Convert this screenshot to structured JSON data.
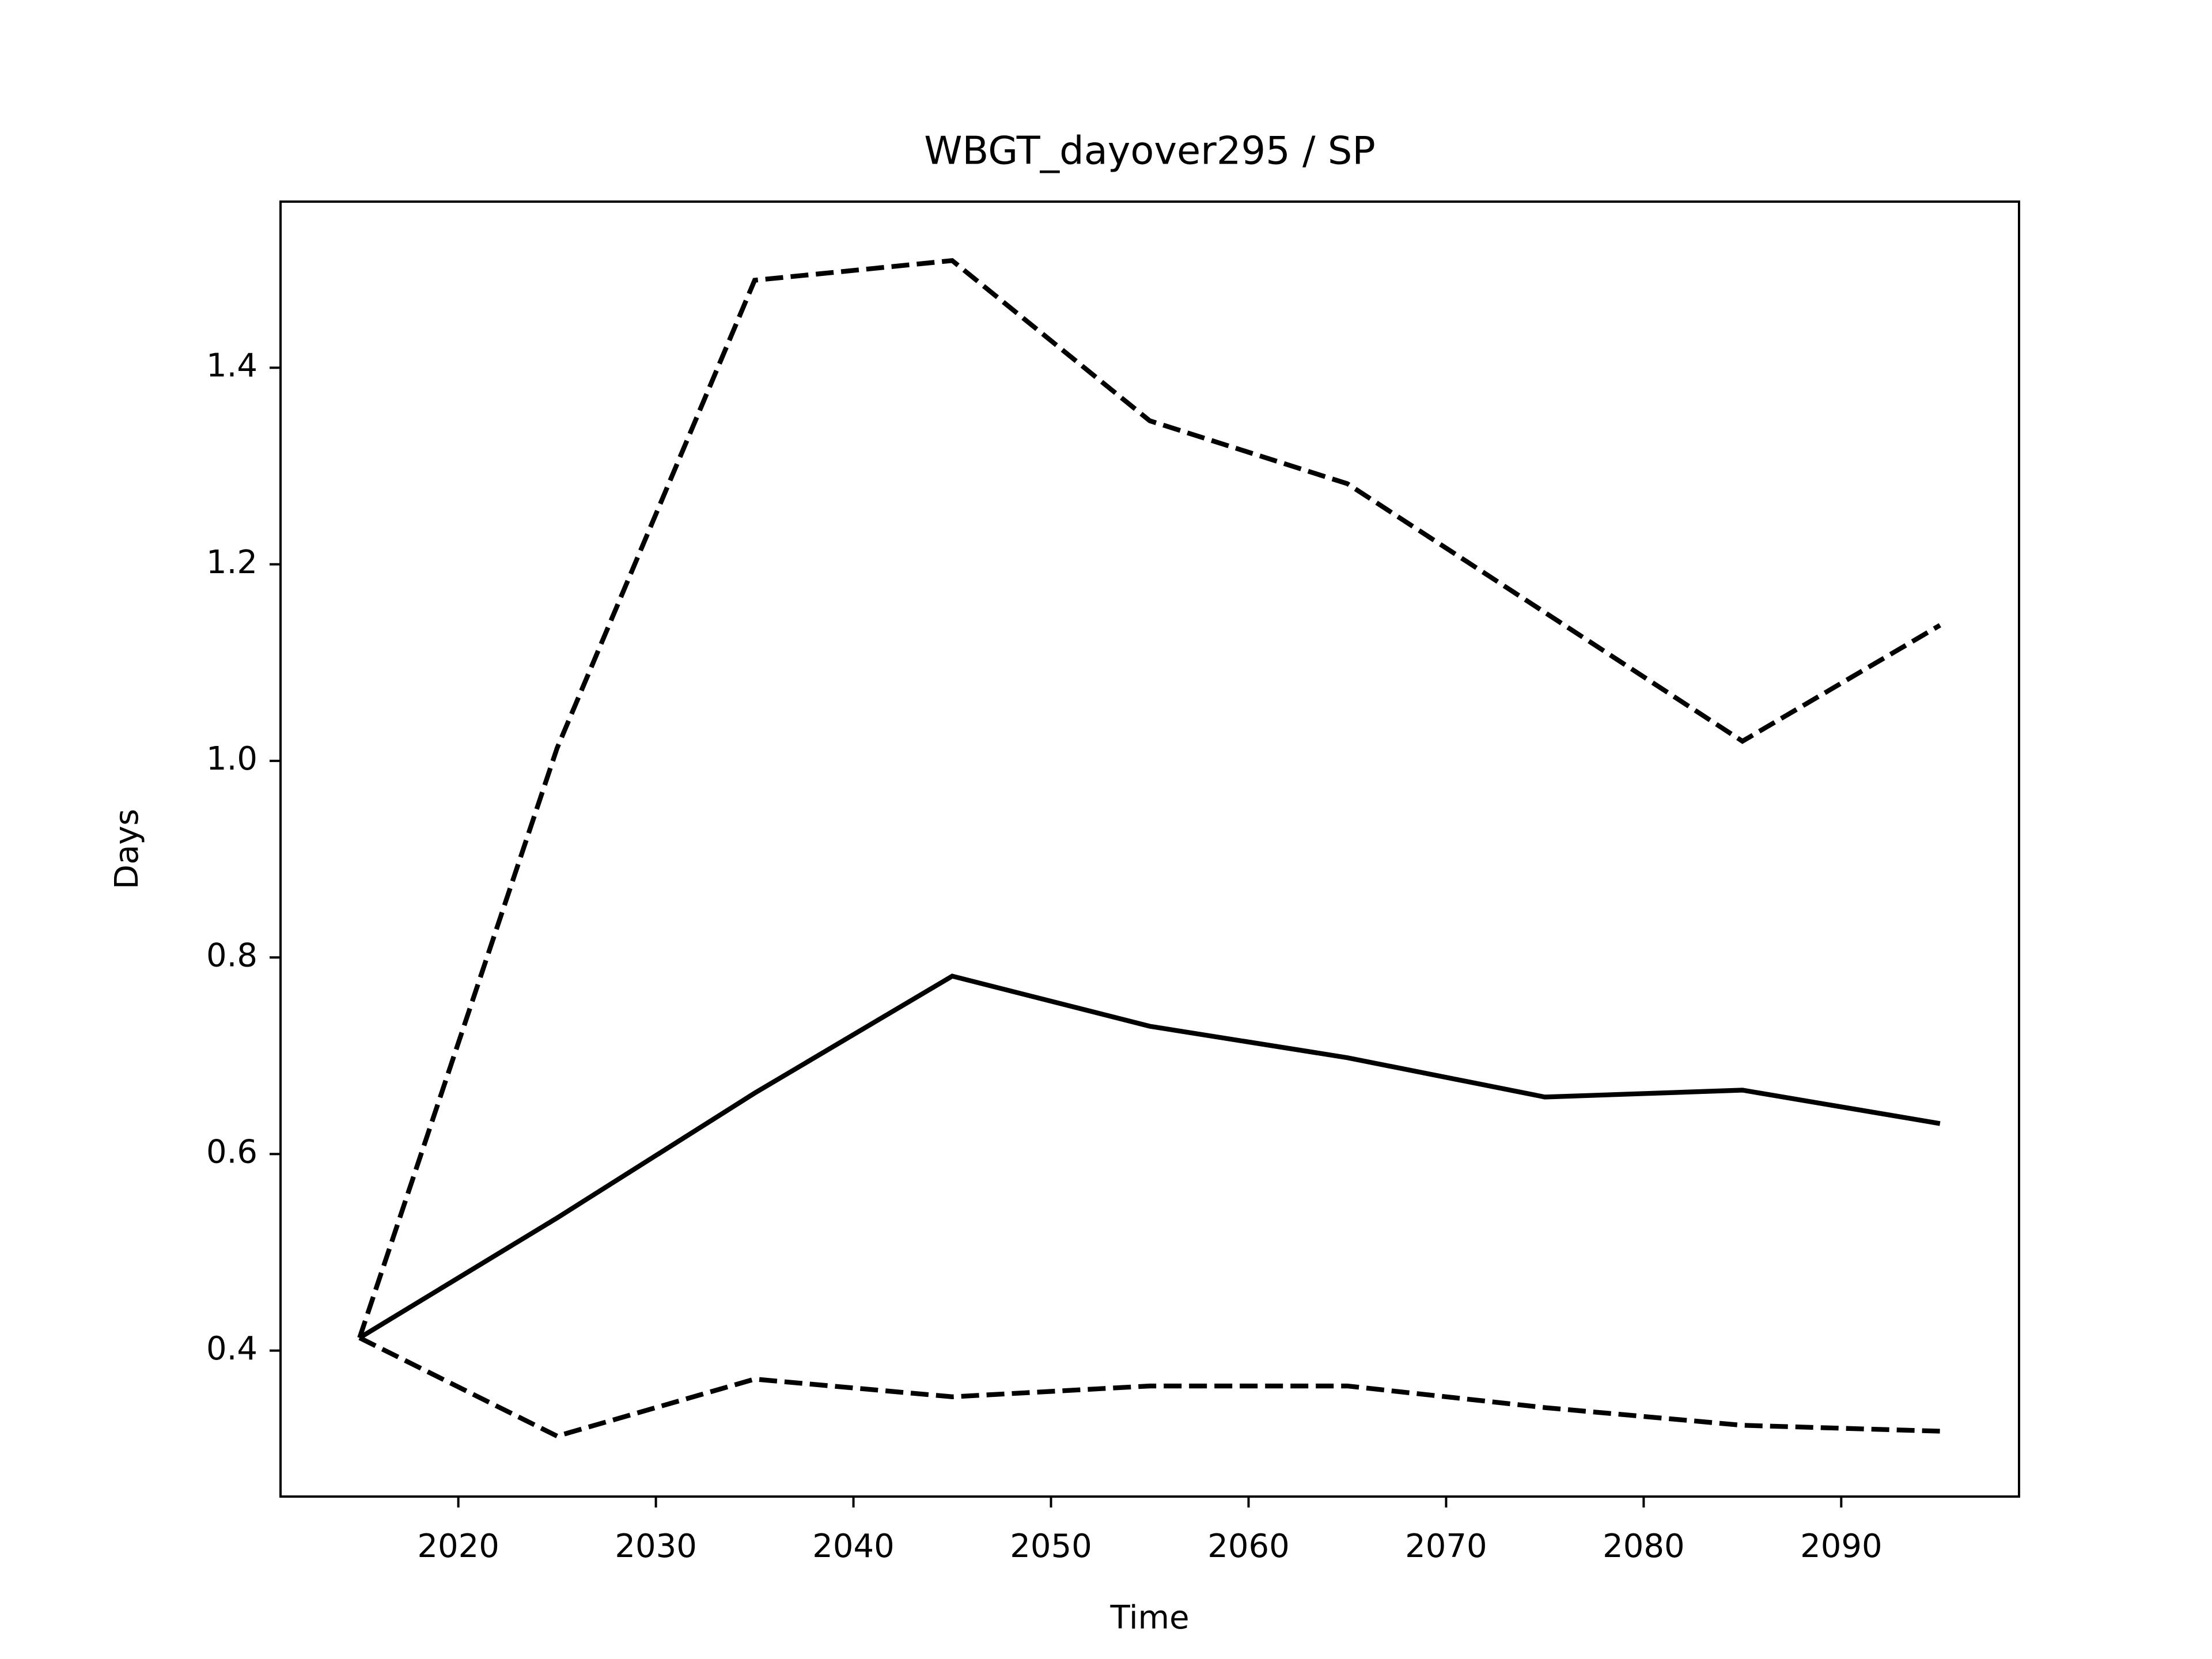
{
  "chart_data": {
    "type": "line",
    "title": "WBGT_dayover295 / SP",
    "x_label": "Time",
    "y_label": "Days",
    "x": [
      2015,
      2025,
      2035,
      2045,
      2055,
      2065,
      2075,
      2085,
      2095
    ],
    "series": [
      {
        "color": "#000000",
        "linestyle": "solid",
        "values": [
          0.413,
          0.535,
          0.662,
          0.781,
          0.73,
          0.698,
          0.658,
          0.665,
          0.631
        ]
      },
      {
        "color": "#000000",
        "linestyle": "dashed",
        "values": [
          0.413,
          1.013,
          1.489,
          1.509,
          1.346,
          1.282,
          1.151,
          1.02,
          1.138
        ]
      },
      {
        "color": "#000000",
        "linestyle": "dashed",
        "values": [
          0.413,
          0.313,
          0.371,
          0.353,
          0.364,
          0.364,
          0.342,
          0.324,
          0.318
        ]
      }
    ],
    "xlim": [
      2011,
      2099
    ],
    "xticks": [
      2020,
      2030,
      2040,
      2050,
      2060,
      2070,
      2080,
      2090
    ],
    "ylim": [
      0.2515,
      1.569
    ],
    "yticks": [
      0.4,
      {
        "value": 0.6,
        "label": "0.6"
      },
      {
        "value": 0.8,
        "label": "0.8"
      },
      {
        "value": 1.0,
        "label": "1.0"
      },
      {
        "value": 1.2,
        "label": "1.2"
      },
      {
        "value": 1.4,
        "label": "1.4"
      }
    ],
    "grid": false
  }
}
